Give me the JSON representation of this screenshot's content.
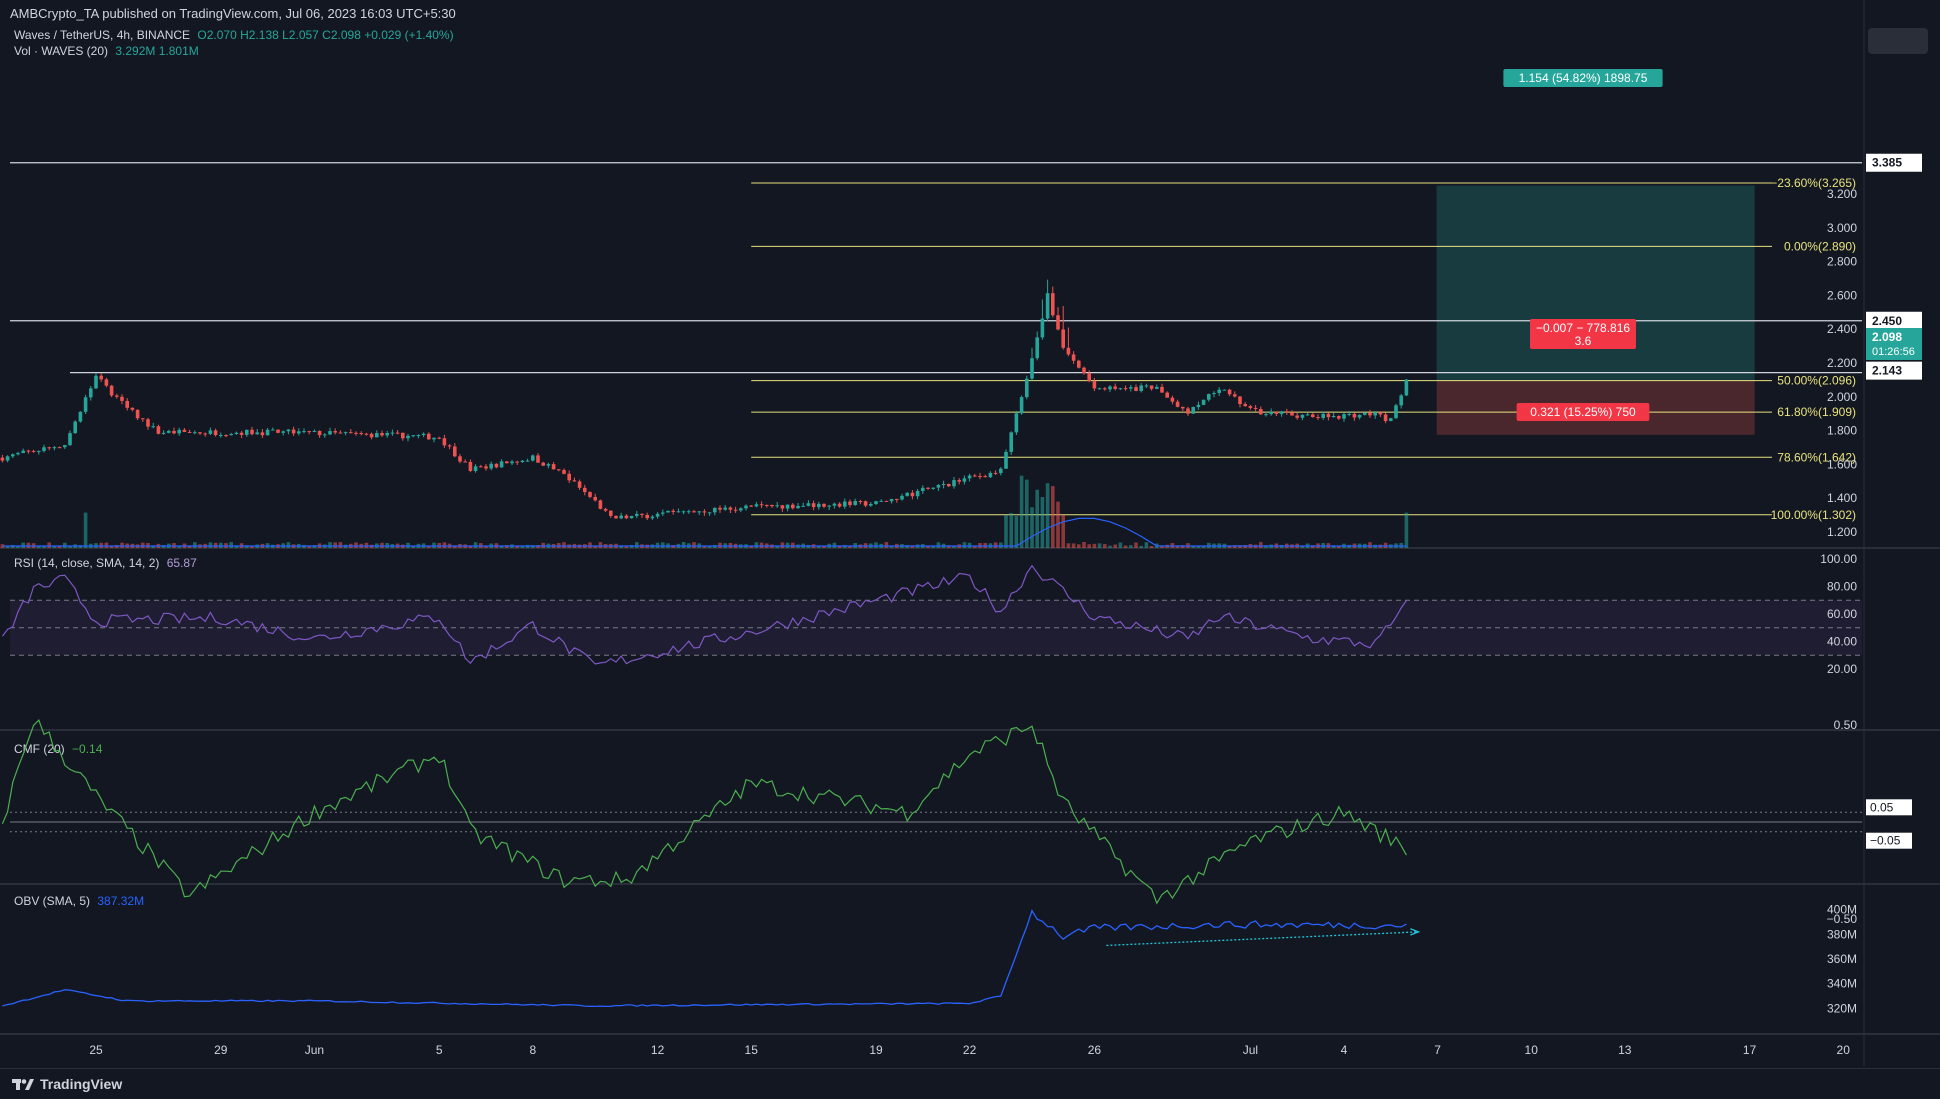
{
  "header": {
    "publisher": "AMBCrypto_TA published on TradingView.com, Jul 06, 2023 16:03 UTC+5:30"
  },
  "legends": {
    "symbol": "Waves / TetherUS, 4h, BINANCE",
    "ohlc": "O2.070 H2.138 L2.057 C2.098 +0.029 (+1.40%)",
    "vol_label": "Vol · WAVES (20)",
    "vol_values": "3.292M 1.801M",
    "rsi_label": "RSI (14, close, SMA, 14, 2)",
    "rsi_value": "65.87",
    "cmf_label": "CMF (20)",
    "cmf_value": "−0.14",
    "obv_label": "OBV (SMA, 5)",
    "obv_value": "387.32M"
  },
  "colors": {
    "background": "#131722",
    "bull": "#26a69a",
    "bear": "#ef5350",
    "fib": "#e8e27c",
    "level": "#d1d4dc",
    "rsi": "#7e57c2",
    "cmf": "#4caf50",
    "obv": "#2962ff",
    "trendline": "#26c6da"
  },
  "price_axis": {
    "ticks": [
      "3.200",
      "3.000",
      "2.800",
      "2.600",
      "2.400",
      "2.200",
      "2.000",
      "1.800",
      "1.600",
      "1.400",
      "1.200"
    ],
    "labels": {
      "top": "3.385",
      "resistance": "2.450",
      "high": "2.143",
      "current": "2.098",
      "countdown": "01:26:56"
    }
  },
  "rsi_axis": [
    "100.00",
    "80.00",
    "60.00",
    "40.00",
    "20.00"
  ],
  "cmf_axis": {
    "ticks": [
      "0.50",
      "−0.50"
    ],
    "labels": [
      "0.05",
      "−0.05"
    ]
  },
  "obv_axis": [
    "400M",
    "380M",
    "360M",
    "340M",
    "320M"
  ],
  "x_axis": [
    "25",
    "29",
    "Jun",
    "5",
    "8",
    "12",
    "15",
    "19",
    "22",
    "26",
    "Jul",
    "4",
    "7",
    "10",
    "13",
    "17",
    "20"
  ],
  "fibonacci": [
    {
      "label": "−23.60%(3.265)",
      "price": 3.265
    },
    {
      "label": "0.00%(2.890)",
      "price": 2.89
    },
    {
      "label": "50.00%(2.096)",
      "price": 2.096
    },
    {
      "label": "61.80%(1.909)",
      "price": 1.909
    },
    {
      "label": "78.60%(1.642)",
      "price": 1.642
    },
    {
      "label": "100.00%(1.302)",
      "price": 1.302
    }
  ],
  "levels": [
    3.385,
    2.45,
    2.143
  ],
  "position": {
    "target_label": "1.154 (54.82%) 1898.75",
    "center_label_1": "−0.007 − 778.816",
    "center_label_2": "3.6",
    "stop_label": "0.321 (15.25%) 750",
    "entry": 2.096,
    "target": 3.25,
    "stop": 1.775
  },
  "chart_data": {
    "type": "candlestick",
    "symbol": "Waves / TetherUS",
    "timeframe": "4h",
    "exchange": "BINANCE",
    "last": {
      "open": 2.07,
      "high": 2.138,
      "low": 2.057,
      "close": 2.098,
      "change": 0.029,
      "change_pct": 1.4
    },
    "price_range": [
      1.12,
      3.42
    ],
    "price_anchors": [
      {
        "date": "May 22",
        "price": 1.64
      },
      {
        "date": "May 24",
        "price": 1.72
      },
      {
        "date": "May 25",
        "price": 2.12
      },
      {
        "date": "May 26",
        "price": 1.93
      },
      {
        "date": "May 27",
        "price": 1.79
      },
      {
        "date": "May 31",
        "price": 1.79
      },
      {
        "date": "Jun 4",
        "price": 1.77
      },
      {
        "date": "Jun 5",
        "price": 1.76
      },
      {
        "date": "Jun 6",
        "price": 1.57
      },
      {
        "date": "Jun 8",
        "price": 1.64
      },
      {
        "date": "Jun 9",
        "price": 1.54
      },
      {
        "date": "Jun 10",
        "price": 1.38
      },
      {
        "date": "Jun 10.5",
        "price": 1.28
      },
      {
        "date": "Jun 15",
        "price": 1.35
      },
      {
        "date": "Jun 19",
        "price": 1.37
      },
      {
        "date": "Jun 22",
        "price": 1.52
      },
      {
        "date": "Jun 23",
        "price": 1.56
      },
      {
        "date": "Jun 24",
        "price": 2.22
      },
      {
        "date": "Jun 24.5",
        "price": 2.6
      },
      {
        "date": "Jun 25",
        "price": 2.3
      },
      {
        "date": "Jun 26",
        "price": 2.05
      },
      {
        "date": "Jun 28",
        "price": 2.05
      },
      {
        "date": "Jun 29",
        "price": 1.9
      },
      {
        "date": "Jun 30",
        "price": 2.05
      },
      {
        "date": "Jul 1",
        "price": 1.92
      },
      {
        "date": "Jul 3",
        "price": 1.88
      },
      {
        "date": "Jul 5",
        "price": 1.9
      },
      {
        "date": "Jul 5.5",
        "price": 1.86
      },
      {
        "date": "Jul 6",
        "price": 2.098
      }
    ],
    "rsi_series": [
      {
        "date": "May 22",
        "value": 40
      },
      {
        "date": "May 23",
        "value": 78
      },
      {
        "date": "May 24",
        "value": 85
      },
      {
        "date": "May 25",
        "value": 55
      },
      {
        "date": "May 29",
        "value": 57
      },
      {
        "date": "Jun 1",
        "value": 42
      },
      {
        "date": "Jun 5",
        "value": 58
      },
      {
        "date": "Jun 6",
        "value": 25
      },
      {
        "date": "Jun 8",
        "value": 52
      },
      {
        "date": "Jun 10",
        "value": 22
      },
      {
        "date": "Jun 15",
        "value": 47
      },
      {
        "date": "Jun 22",
        "value": 87
      },
      {
        "date": "Jun 23",
        "value": 62
      },
      {
        "date": "Jun 24",
        "value": 95
      },
      {
        "date": "Jun 26",
        "value": 58
      },
      {
        "date": "Jun 29",
        "value": 42
      },
      {
        "date": "Jun 30",
        "value": 58
      },
      {
        "date": "Jul 3",
        "value": 42
      },
      {
        "date": "Jul 5",
        "value": 38
      },
      {
        "date": "Jul 6",
        "value": 65.87
      }
    ],
    "cmf_series": [
      {
        "date": "May 22",
        "value": 0
      },
      {
        "date": "May 23",
        "value": 0.53
      },
      {
        "date": "May 25",
        "value": 0.13
      },
      {
        "date": "May 28",
        "value": -0.38
      },
      {
        "date": "Jun 1",
        "value": 0.05
      },
      {
        "date": "Jun 5",
        "value": 0.35
      },
      {
        "date": "Jun 6",
        "value": -0.05
      },
      {
        "date": "Jun 9",
        "value": -0.3
      },
      {
        "date": "Jun 11",
        "value": -0.3
      },
      {
        "date": "Jun 15",
        "value": 0.2
      },
      {
        "date": "Jun 20",
        "value": 0.05
      },
      {
        "date": "Jun 22",
        "value": 0.35
      },
      {
        "date": "Jun 24",
        "value": 0.5
      },
      {
        "date": "Jun 25",
        "value": 0.1
      },
      {
        "date": "Jun 28",
        "value": -0.4
      },
      {
        "date": "Jul 1",
        "value": -0.1
      },
      {
        "date": "Jul 4",
        "value": 0.05
      },
      {
        "date": "Jul 6",
        "value": -0.14
      }
    ],
    "obv_series": [
      {
        "date": "May 22",
        "value": 322
      },
      {
        "date": "May 24",
        "value": 335
      },
      {
        "date": "May 26",
        "value": 326
      },
      {
        "date": "Jun 1",
        "value": 326
      },
      {
        "date": "Jun 10",
        "value": 322
      },
      {
        "date": "Jun 15",
        "value": 323
      },
      {
        "date": "Jun 22",
        "value": 324
      },
      {
        "date": "Jun 23",
        "value": 330
      },
      {
        "date": "Jun 24",
        "value": 398
      },
      {
        "date": "Jun 25",
        "value": 378
      },
      {
        "date": "Jun 26",
        "value": 385
      },
      {
        "date": "Jun 30",
        "value": 388
      },
      {
        "date": "Jul 6",
        "value": 387.32
      }
    ]
  }
}
